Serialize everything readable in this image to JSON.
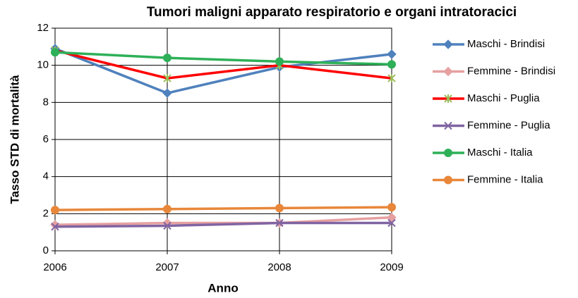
{
  "chart_data": {
    "type": "line",
    "title": "Tumori maligni apparato respiratorio e organi intratoracici",
    "x_label": "Anno",
    "y_label": "Tasso STD di mortalità",
    "x": [
      2006,
      2007,
      2008,
      2009
    ],
    "xlim": [
      2006,
      2009
    ],
    "xticks": [
      2006,
      2007,
      2008,
      2009
    ],
    "ylim": [
      0,
      12
    ],
    "yticks": [
      0,
      2,
      4,
      6,
      8,
      10,
      12
    ],
    "grid": true,
    "legend": "right",
    "series": [
      {
        "name": "Maschi - Brindisi",
        "color": "#4f81bd",
        "marker": "diamond",
        "values": [
          10.9,
          8.5,
          9.9,
          10.6
        ]
      },
      {
        "name": "Femmine - Brindisi",
        "color": "#e6a0a0",
        "marker": "diamond",
        "values": [
          1.4,
          1.5,
          1.5,
          1.8
        ]
      },
      {
        "name": "Maschi - Puglia",
        "color": "#ff0000",
        "marker": "star",
        "values": [
          10.8,
          9.3,
          10.0,
          9.3
        ]
      },
      {
        "name": "Femmine - Puglia",
        "color": "#8064a2",
        "marker": "x",
        "values": [
          1.3,
          1.35,
          1.5,
          1.5
        ]
      },
      {
        "name": "Maschi - Italia",
        "color": "#2eb058",
        "marker": "circle",
        "values": [
          10.7,
          10.4,
          10.2,
          10.05
        ]
      },
      {
        "name": "Femmine - Italia",
        "color": "#e8873a",
        "marker": "circle",
        "values": [
          2.2,
          2.25,
          2.3,
          2.35
        ]
      }
    ]
  }
}
